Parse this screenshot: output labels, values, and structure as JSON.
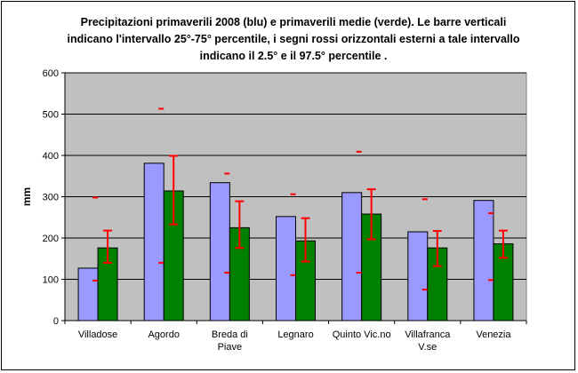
{
  "chart_data": {
    "type": "bar",
    "title_lines": [
      "Precipitazioni primaverili 2008 (blu) e primaverili medie (verde). Le barre verticali",
      "indicano l'intervallo 25°-75° percentile, i segni rossi orizzontali esterni a tale intervallo",
      "indicano il 2.5° e il 97.5° percentile ."
    ],
    "ylabel": "mm",
    "ylim": [
      0,
      600
    ],
    "yticks": [
      "0",
      "100",
      "200",
      "300",
      "400",
      "500",
      "600"
    ],
    "grid": true,
    "categories": [
      [
        "Villadose"
      ],
      [
        "Agordo"
      ],
      [
        "Breda di",
        "Piave"
      ],
      [
        "Legnaro"
      ],
      [
        "Quinto Vic.no"
      ],
      [
        "Villafranca",
        "V.se"
      ],
      [
        "Venezia"
      ]
    ],
    "series": [
      {
        "values": [
          127,
          381,
          334,
          252,
          310,
          215,
          291
        ]
      },
      {
        "values": [
          176,
          314,
          225,
          193,
          258,
          176,
          186
        ]
      }
    ],
    "percentile_25_75": [
      [
        140,
        218
      ],
      [
        233,
        399
      ],
      [
        176,
        289
      ],
      [
        143,
        248
      ],
      [
        197,
        318
      ],
      [
        132,
        217
      ],
      [
        152,
        218
      ]
    ],
    "percentile_2_5_97_5": [
      [
        97,
        298
      ],
      [
        140,
        513
      ],
      [
        116,
        356
      ],
      [
        110,
        306
      ],
      [
        116,
        409
      ],
      [
        75,
        294
      ],
      [
        98,
        260
      ]
    ],
    "colors": {
      "blue_bar": "#9999ff",
      "green_bar": "#008000",
      "red_marks": "#ff0000",
      "plot_background": "#c0c0c0"
    }
  }
}
